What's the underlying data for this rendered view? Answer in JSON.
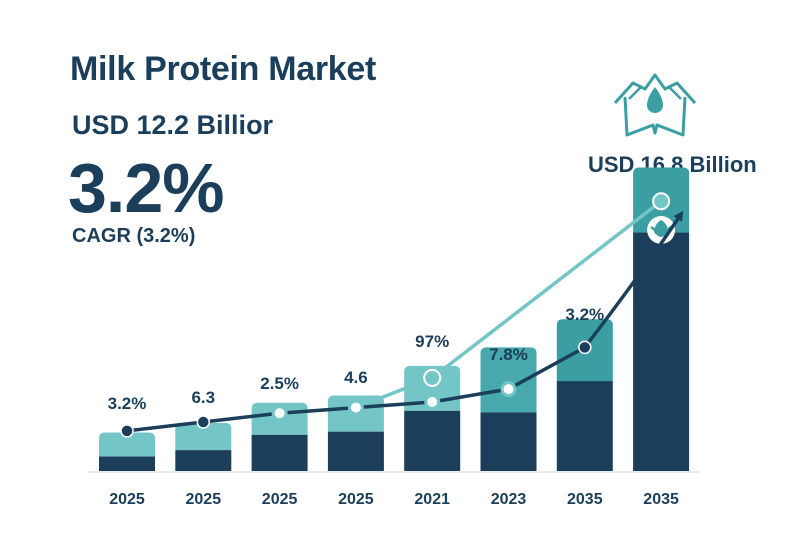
{
  "header": {
    "title": "Milk Protein Market",
    "subtitle": "USD 12.2 Billior",
    "headline_pct": "3.2%",
    "cagr_label": "CAGR (3.2%)",
    "target_value": "USD 16.8 Billion"
  },
  "colors": {
    "navy": "#1b3e5a",
    "teal_light": "#74c6c6",
    "teal_mid": "#47a9ab",
    "teal_dark": "#3a9ea3"
  },
  "icons": [
    "milk-drop-logo-icon",
    "leaf-icon"
  ],
  "chart_data": {
    "type": "bar",
    "categories": [
      "2025",
      "2025",
      "2025",
      "2025",
      "2021",
      "2023",
      "2035",
      "2035"
    ],
    "series": [
      {
        "values": [
          1.8,
          2.6,
          4.5,
          4.9,
          7.5,
          7.3,
          11.2,
          29.7
        ]
      },
      {
        "values": [
          3.0,
          3.4,
          4.0,
          4.5,
          5.6,
          8.1,
          7.7,
          8.1
        ]
      }
    ],
    "trend_line": [
      5.0,
      6.1,
      7.2,
      7.9,
      8.6,
      10.2,
      15.4,
      32.0
    ],
    "growth_line": [
      null,
      null,
      null,
      null,
      11.6,
      null,
      null,
      33.6
    ],
    "point_labels": [
      "3.2%",
      "6.3",
      "2.5%",
      "4.6",
      "97%",
      "7.8%",
      "3.2%",
      ""
    ],
    "ylim": [
      0,
      35
    ],
    "grid": false,
    "legend": "none"
  }
}
